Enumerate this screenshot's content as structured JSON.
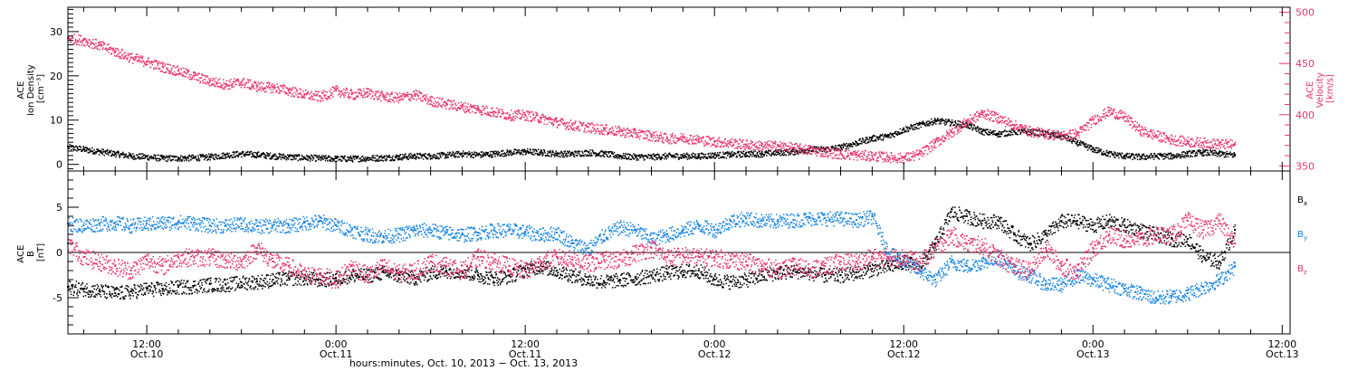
{
  "colors": {
    "black": "#000000",
    "magenta": "#e8346c",
    "blue": "#1683e0",
    "axis": "#000000"
  },
  "footer": {
    "label": "hours:minutes, Oct. 10, 2013 − Oct. 13, 2013"
  },
  "time_axis": {
    "unit": "hours since 2013-10-10 00:00",
    "range": [
      7.0,
      84.5
    ],
    "ticks": [
      {
        "t": 12,
        "time": "12:00",
        "date": "Oct.10"
      },
      {
        "t": 24,
        "time": "0:00",
        "date": "Oct.11"
      },
      {
        "t": 36,
        "time": "12:00",
        "date": "Oct.11"
      },
      {
        "t": 48,
        "time": "0:00",
        "date": "Oct.12"
      },
      {
        "t": 60,
        "time": "12:00",
        "date": "Oct.12"
      },
      {
        "t": 72,
        "time": "0:00",
        "date": "Oct.13"
      },
      {
        "t": 84,
        "time": "12:00",
        "date": "Oct.13"
      }
    ],
    "minor_step_hours": 2
  },
  "chart_data": [
    {
      "type": "scatter",
      "panel": "top",
      "left_axis": {
        "label_lines": [
          "ACE",
          "Ion Density",
          "[cm⁻³]"
        ],
        "range": [
          -1.5,
          35.5
        ],
        "ticks": [
          0,
          10,
          20,
          30
        ]
      },
      "right_axis": {
        "label_lines": [
          "ACE",
          "Velocity",
          "[km/s]"
        ],
        "range": [
          345,
          505
        ],
        "ticks": [
          350,
          400,
          450,
          500
        ]
      },
      "series": [
        {
          "key": "density",
          "axis": "left",
          "color_key": "black",
          "x": [
            7,
            8,
            9,
            10,
            11,
            12,
            13,
            14,
            15,
            16,
            17,
            18,
            19,
            20,
            21,
            22,
            23,
            24,
            25,
            26,
            27,
            28,
            29,
            30,
            31,
            32,
            33,
            34,
            35,
            36,
            37,
            38,
            39,
            40,
            41,
            42,
            43,
            44,
            45,
            46,
            47,
            48,
            49,
            50,
            51,
            52,
            53,
            54,
            55,
            56,
            57,
            58,
            59,
            60,
            61,
            62,
            63,
            64,
            65,
            66,
            67,
            68,
            69,
            70,
            71,
            72,
            73,
            74,
            75,
            76,
            77,
            78,
            79,
            80,
            81
          ],
          "y": [
            4,
            3.5,
            3,
            2.5,
            2,
            1.8,
            1.5,
            1.5,
            1.6,
            1.8,
            2.2,
            2.5,
            2.3,
            2,
            1.8,
            1.6,
            1.5,
            1.4,
            1.4,
            1.5,
            1.6,
            1.8,
            2,
            2,
            2.2,
            2.5,
            2.3,
            2.5,
            2.8,
            3,
            2.8,
            2.5,
            2.5,
            2.8,
            2.5,
            2,
            1.8,
            1.8,
            2,
            2,
            2,
            2.2,
            2.3,
            2.5,
            2.5,
            2.8,
            3,
            3.5,
            3.5,
            4,
            5,
            6,
            6.5,
            8,
            9,
            10,
            9.5,
            9,
            7.5,
            7,
            7.5,
            7.5,
            7,
            6.5,
            5,
            3.5,
            2.5,
            2,
            1.8,
            2,
            2,
            2.5,
            2.8,
            2.5,
            2.2
          ],
          "y_spread": 0.7
        },
        {
          "key": "velocity",
          "axis": "right",
          "color_key": "magenta",
          "x": [
            7,
            8,
            9,
            10,
            11,
            12,
            13,
            14,
            15,
            16,
            17,
            18,
            19,
            20,
            21,
            22,
            23,
            24,
            25,
            26,
            27,
            28,
            29,
            30,
            31,
            32,
            33,
            34,
            35,
            36,
            37,
            38,
            39,
            40,
            41,
            42,
            43,
            44,
            45,
            46,
            47,
            48,
            49,
            50,
            51,
            52,
            53,
            54,
            55,
            56,
            57,
            58,
            59,
            60,
            61,
            62,
            63,
            64,
            65,
            66,
            67,
            68,
            69,
            70,
            71,
            72,
            73,
            74,
            75,
            76,
            77,
            78,
            79,
            80,
            81
          ],
          "y": [
            475,
            473,
            468,
            462,
            456,
            452,
            447,
            443,
            438,
            433,
            430,
            432,
            428,
            427,
            424,
            420,
            418,
            424,
            420,
            422,
            418,
            417,
            420,
            414,
            411,
            408,
            406,
            403,
            400,
            400,
            397,
            393,
            390,
            388,
            386,
            384,
            382,
            380,
            377,
            378,
            376,
            374,
            373,
            371,
            370,
            370,
            368,
            366,
            364,
            362,
            361,
            360,
            359,
            358,
            362,
            373,
            383,
            394,
            402,
            397,
            390,
            384,
            382,
            380,
            382,
            395,
            404,
            398,
            385,
            380,
            376,
            374,
            373,
            372,
            371
          ],
          "y_spread": 5
        }
      ]
    },
    {
      "type": "scatter",
      "panel": "bottom",
      "left_axis": {
        "label_lines": [
          "ACE",
          "B",
          "[nT]"
        ],
        "range": [
          -9,
          9
        ],
        "ticks": [
          -5,
          0,
          5
        ]
      },
      "zero_line": true,
      "legend": [
        {
          "label": "B",
          "subscript": "x",
          "color_key": "black"
        },
        {
          "label": "B",
          "subscript": "y",
          "color_key": "blue"
        },
        {
          "label": "B",
          "subscript": "z",
          "color_key": "magenta"
        }
      ],
      "series": [
        {
          "key": "Bx",
          "color_key": "black",
          "x": [
            7,
            8,
            9,
            10,
            11,
            12,
            13,
            14,
            15,
            16,
            17,
            18,
            19,
            20,
            21,
            22,
            23,
            24,
            25,
            26,
            27,
            28,
            29,
            30,
            31,
            32,
            33,
            34,
            35,
            36,
            37,
            38,
            39,
            40,
            41,
            42,
            43,
            44,
            45,
            46,
            47,
            48,
            49,
            50,
            51,
            52,
            53,
            54,
            55,
            56,
            57,
            58,
            59,
            60,
            61,
            62,
            63,
            64,
            65,
            66,
            67,
            68,
            69,
            70,
            71,
            72,
            73,
            74,
            75,
            76,
            77,
            78,
            79,
            80,
            81
          ],
          "y": [
            -3.8,
            -4,
            -4.2,
            -4.5,
            -4.3,
            -4,
            -4,
            -3.8,
            -3.7,
            -3.5,
            -3.5,
            -3.3,
            -3.2,
            -3,
            -2.8,
            -2.8,
            -3,
            -2.8,
            -2.5,
            -2.5,
            -2.2,
            -2.5,
            -2.8,
            -2.2,
            -2,
            -2,
            -2.5,
            -2.8,
            -2.6,
            -1.8,
            -1.5,
            -2,
            -2.5,
            -3,
            -3.2,
            -3,
            -2.8,
            -2.5,
            -2.2,
            -2,
            -2,
            -3,
            -3.2,
            -3,
            -2.5,
            -2.2,
            -2,
            -2.2,
            -2.5,
            -2.5,
            -2.2,
            -1.8,
            -1.5,
            -1,
            -1.5,
            1,
            4.5,
            4,
            3.5,
            3.5,
            2,
            1,
            2,
            3.5,
            3.5,
            3,
            3.5,
            3,
            2.5,
            2,
            1.5,
            1.5,
            -0.5,
            -1,
            2.5
          ],
          "y_spread": 0.8
        },
        {
          "key": "By",
          "color_key": "blue",
          "x": [
            7,
            8,
            9,
            10,
            11,
            12,
            13,
            14,
            15,
            16,
            17,
            18,
            19,
            20,
            21,
            22,
            23,
            24,
            25,
            26,
            27,
            28,
            29,
            30,
            31,
            32,
            33,
            34,
            35,
            36,
            37,
            38,
            39,
            40,
            41,
            42,
            43,
            44,
            45,
            46,
            47,
            48,
            49,
            50,
            51,
            52,
            53,
            54,
            55,
            56,
            57,
            58,
            59,
            60,
            61,
            62,
            63,
            64,
            65,
            66,
            67,
            68,
            69,
            70,
            71,
            72,
            73,
            74,
            75,
            76,
            77,
            78,
            79,
            80,
            81
          ],
          "y": [
            3.2,
            3,
            3.2,
            3.3,
            3,
            3.2,
            3.3,
            3.4,
            3.3,
            3,
            3,
            3.2,
            2.9,
            3,
            3,
            3.3,
            3.5,
            3,
            2.5,
            2,
            1.8,
            2,
            2.5,
            2.5,
            2.2,
            2,
            2.2,
            2.5,
            2.5,
            2.3,
            2,
            2.2,
            1,
            0.5,
            2,
            2.8,
            2.5,
            1.5,
            2,
            2.5,
            3,
            2.5,
            3.5,
            3.8,
            3.5,
            3.5,
            3.6,
            3.8,
            3.8,
            3.8,
            3.6,
            4,
            0,
            -1,
            -2,
            -3,
            -1,
            -1.5,
            -1,
            -0.5,
            -2,
            -2.5,
            -3.5,
            -3.5,
            -2.5,
            -3,
            -3.5,
            -4,
            -4.5,
            -5,
            -4.8,
            -4.5,
            -3.8,
            -3,
            -1.5
          ],
          "y_spread": 0.8
        },
        {
          "key": "Bz",
          "color_key": "magenta",
          "x": [
            7,
            8,
            9,
            10,
            11,
            12,
            13,
            14,
            15,
            16,
            17,
            18,
            19,
            20,
            21,
            22,
            23,
            24,
            25,
            26,
            27,
            28,
            29,
            30,
            31,
            32,
            33,
            34,
            35,
            36,
            37,
            38,
            39,
            40,
            41,
            42,
            43,
            44,
            45,
            46,
            47,
            48,
            49,
            50,
            51,
            52,
            53,
            54,
            55,
            56,
            57,
            58,
            59,
            60,
            61,
            62,
            63,
            64,
            65,
            66,
            67,
            68,
            69,
            70,
            71,
            72,
            73,
            74,
            75,
            76,
            77,
            78,
            79,
            80,
            81
          ],
          "y": [
            1,
            -0.5,
            -1,
            -1.5,
            -2,
            -0.8,
            -1.5,
            -0.5,
            -0.5,
            -0.5,
            -0.8,
            -1,
            0.5,
            -1,
            -1.5,
            -2.5,
            -2.5,
            -3,
            -1.5,
            -2.5,
            -1.5,
            -2.3,
            -2,
            -1,
            -1.5,
            -2,
            -0.5,
            -1,
            -1.5,
            -2,
            -1,
            -0.5,
            -0.8,
            -1.2,
            -0.8,
            -0.8,
            0,
            0.5,
            -0.5,
            -0.3,
            -0.5,
            -0.5,
            -0.8,
            -1,
            -1.5,
            -1.8,
            -1.5,
            -1.8,
            -1.5,
            -1,
            -1,
            -0.5,
            -0.5,
            -0.5,
            -1,
            0.5,
            2,
            1,
            0.8,
            -0.5,
            -1.5,
            -2,
            0.5,
            -1.5,
            -2,
            0.5,
            2,
            1.5,
            1.5,
            2,
            2,
            3.5,
            2.5,
            3.5,
            1
          ],
          "y_spread": 1
        }
      ]
    }
  ]
}
